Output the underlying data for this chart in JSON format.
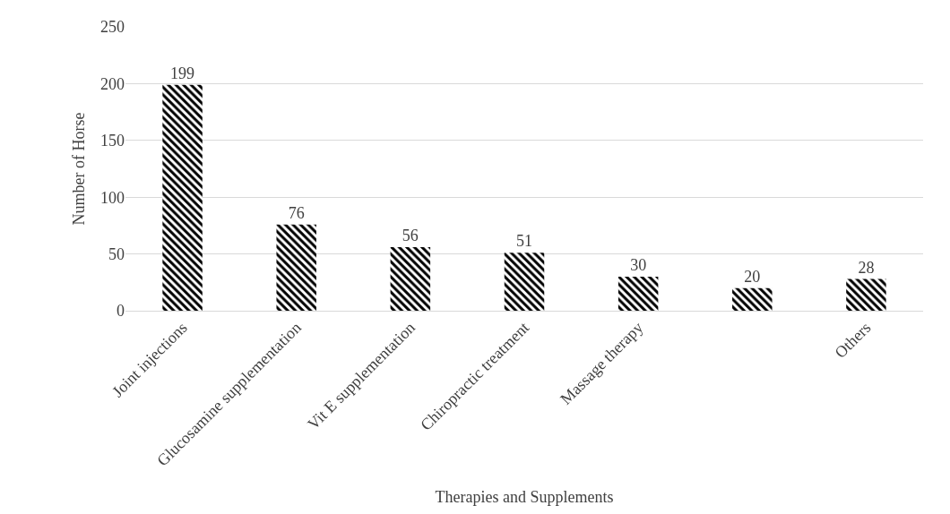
{
  "chart_data": {
    "type": "bar",
    "xlabel": "Therapies and Supplements",
    "ylabel": "Number of Horse",
    "categories": [
      "Joint injections",
      "Glucosamine supplementation",
      "Vit E supplementation",
      "Chiropractic treatment",
      "Massage therapy",
      null,
      "Others"
    ],
    "values": [
      199,
      76,
      56,
      51,
      30,
      20,
      28
    ],
    "color": "#000000",
    "ylim": [
      0,
      250
    ],
    "yticks": [
      0,
      50,
      100,
      150,
      200,
      250
    ],
    "grid": "y",
    "data_labels": true
  }
}
